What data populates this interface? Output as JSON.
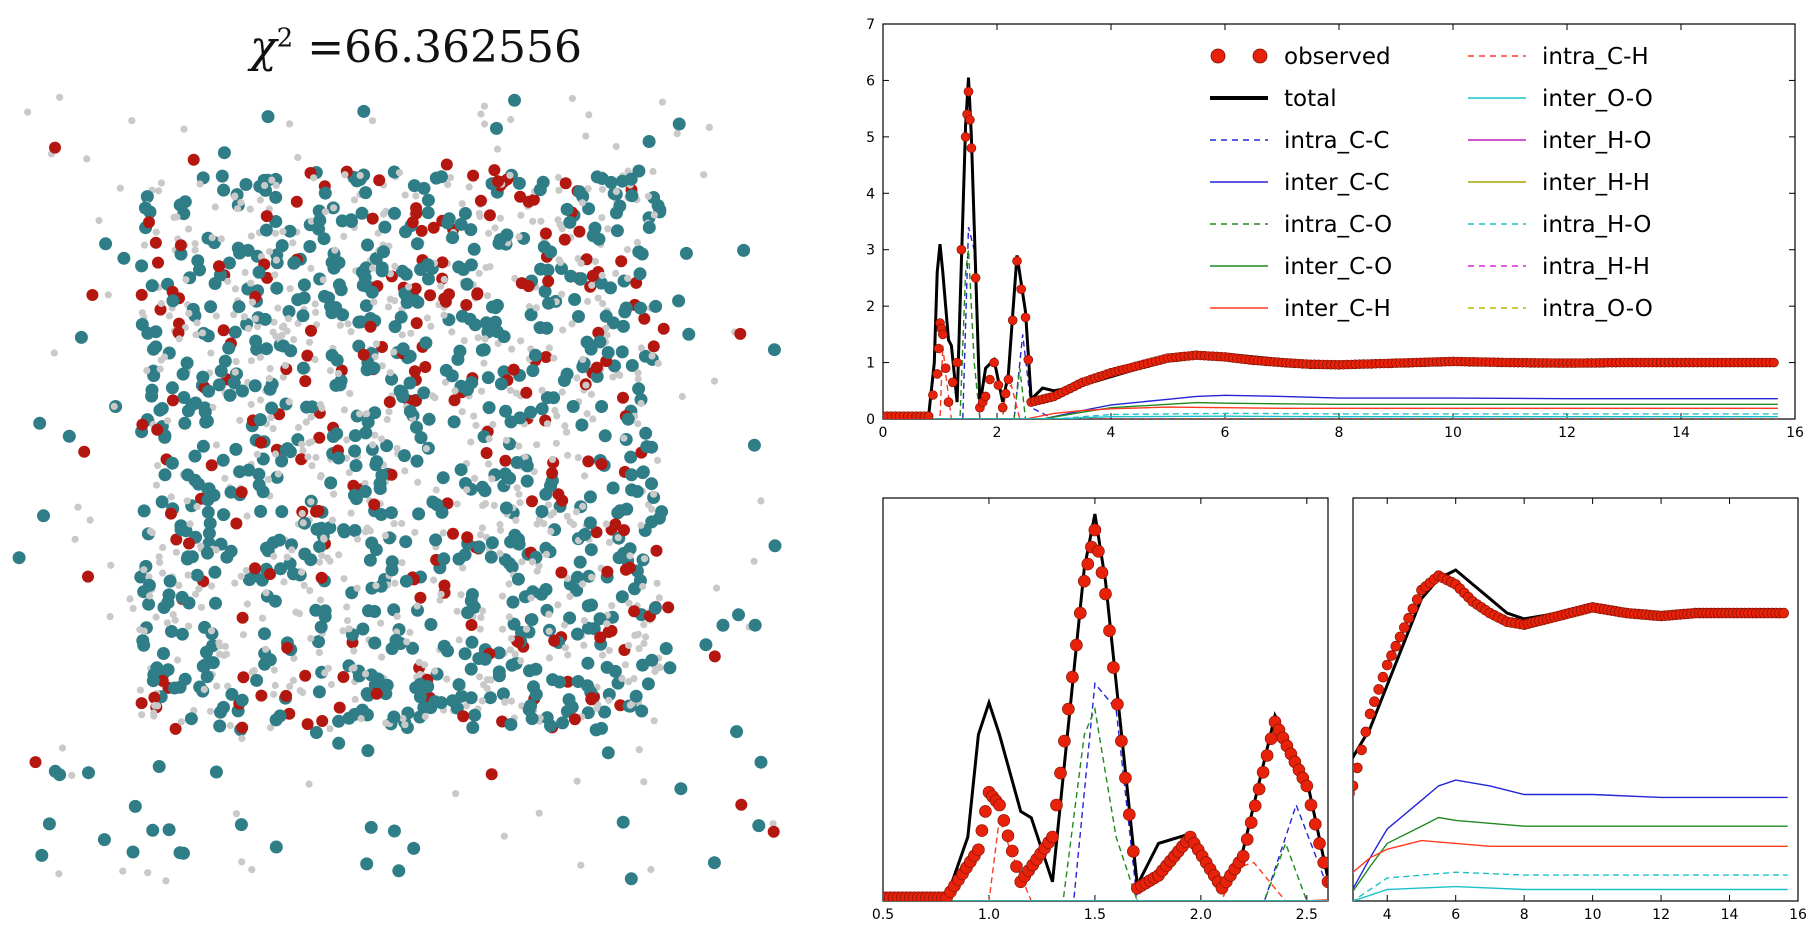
{
  "title": {
    "symbol": "χ",
    "exponent": "2",
    "value": "=66.362556"
  },
  "legend": [
    {
      "label": "observed",
      "color": "#e8220a",
      "style": "dots"
    },
    {
      "label": "total",
      "color": "#000000",
      "style": "solid-thick"
    },
    {
      "label": "intra_C-C",
      "color": "#2424d8",
      "style": "dashed"
    },
    {
      "label": "inter_C-C",
      "color": "#2424d8",
      "style": "solid"
    },
    {
      "label": "intra_C-O",
      "color": "#1f8a1f",
      "style": "dashed"
    },
    {
      "label": "inter_C-O",
      "color": "#1f8a1f",
      "style": "solid"
    },
    {
      "label": "inter_C-H",
      "color": "#ff3b22",
      "style": "solid"
    },
    {
      "label": "intra_C-H",
      "color": "#ff3b22",
      "style": "dashed"
    },
    {
      "label": "inter_O-O",
      "color": "#19c2c8",
      "style": "solid"
    },
    {
      "label": "inter_H-O",
      "color": "#c21fc2",
      "style": "solid"
    },
    {
      "label": "inter_H-H",
      "color": "#a8a400",
      "style": "solid"
    },
    {
      "label": "intra_H-O",
      "color": "#19c2c8",
      "style": "dashed"
    },
    {
      "label": "intra_H-H",
      "color": "#d825d8",
      "style": "dashed"
    },
    {
      "label": "intra_O-O",
      "color": "#b8b800",
      "style": "dashed"
    }
  ],
  "chart_data": [
    {
      "type": "line",
      "xlim": [
        0,
        16
      ],
      "ylim": [
        0,
        7
      ],
      "xticks": [
        "0",
        "2",
        "4",
        "6",
        "8",
        "10",
        "12",
        "14",
        "16"
      ],
      "yticks": [
        "0",
        "1",
        "2",
        "3",
        "4",
        "5",
        "6",
        "7"
      ],
      "series": [
        {
          "name": "observed",
          "x": [
            0,
            0.8,
            0.95,
            1.0,
            1.05,
            1.15,
            1.3,
            1.45,
            1.5,
            1.55,
            1.7,
            1.8,
            1.95,
            2.1,
            2.2,
            2.35,
            2.5,
            2.6,
            2.8,
            3,
            3.5,
            4,
            4.5,
            5,
            5.5,
            6,
            6.5,
            7,
            7.5,
            8,
            9,
            10,
            11,
            12,
            13,
            14,
            15,
            15.7
          ],
          "y": [
            0.05,
            0.05,
            0.8,
            1.7,
            1.5,
            0.3,
            1.0,
            5.0,
            5.8,
            4.8,
            0.2,
            0.4,
            1.0,
            0.2,
            0.7,
            2.8,
            1.8,
            0.3,
            0.35,
            0.4,
            0.65,
            0.82,
            0.95,
            1.08,
            1.13,
            1.1,
            1.04,
            1.0,
            0.97,
            0.96,
            0.99,
            1.02,
            1.0,
            0.99,
            1.0,
            1.0,
            1.0,
            1.0
          ]
        },
        {
          "name": "total",
          "x": [
            0,
            0.8,
            0.9,
            0.95,
            1.0,
            1.05,
            1.15,
            1.2,
            1.3,
            1.45,
            1.5,
            1.55,
            1.7,
            1.8,
            1.95,
            2.1,
            2.2,
            2.35,
            2.5,
            2.6,
            2.8,
            3,
            3.5,
            4,
            4.5,
            5,
            5.5,
            6,
            6.5,
            7,
            7.5,
            8,
            9,
            10,
            11,
            12,
            13,
            14,
            15,
            15.7
          ],
          "y": [
            0.05,
            0.05,
            1.0,
            2.6,
            3.1,
            2.6,
            1.4,
            1.3,
            0.3,
            5.2,
            6.05,
            5.0,
            0.25,
            0.9,
            1.05,
            0.3,
            0.8,
            2.9,
            1.9,
            0.35,
            0.55,
            0.5,
            0.6,
            0.75,
            0.9,
            1.05,
            1.12,
            1.15,
            1.1,
            1.05,
            1.0,
            0.98,
            1.0,
            1.02,
            1.0,
            1.0,
            1.0,
            1.0,
            1.0,
            1.0
          ]
        },
        {
          "name": "intra_C-C",
          "x": [
            0,
            1.4,
            1.5,
            1.6,
            1.7,
            2.3,
            2.45,
            2.6,
            3,
            15.7
          ],
          "y": [
            0,
            0,
            3.4,
            3.0,
            0,
            0,
            1.5,
            0.2,
            0,
            0
          ]
        },
        {
          "name": "inter_C-C",
          "x": [
            0,
            2.8,
            3.5,
            4,
            5,
            5.5,
            6,
            7,
            8,
            10,
            12,
            14,
            15.7
          ],
          "y": [
            0,
            0,
            0.15,
            0.25,
            0.35,
            0.4,
            0.42,
            0.4,
            0.37,
            0.37,
            0.36,
            0.36,
            0.36
          ]
        },
        {
          "name": "intra_C-O",
          "x": [
            0,
            1.35,
            1.45,
            1.5,
            1.6,
            1.7,
            2.3,
            2.4,
            2.5,
            15.7
          ],
          "y": [
            0,
            0,
            2.6,
            3.0,
            1.0,
            0,
            0,
            0.9,
            0,
            0
          ]
        },
        {
          "name": "inter_C-O",
          "x": [
            0,
            2.8,
            3.5,
            4,
            5,
            5.5,
            6,
            7,
            8,
            10,
            12,
            14,
            15.7
          ],
          "y": [
            0,
            0,
            0.12,
            0.2,
            0.26,
            0.29,
            0.28,
            0.27,
            0.26,
            0.26,
            0.26,
            0.26,
            0.26
          ]
        },
        {
          "name": "inter_C-H",
          "x": [
            0,
            2.5,
            3,
            3.5,
            4,
            5,
            6,
            7,
            8,
            10,
            12,
            14,
            15.7
          ],
          "y": [
            0,
            0,
            0.1,
            0.15,
            0.18,
            0.21,
            0.2,
            0.19,
            0.19,
            0.19,
            0.19,
            0.19,
            0.19
          ]
        },
        {
          "name": "intra_C-H",
          "x": [
            0,
            1.0,
            1.05,
            1.1,
            1.2,
            2.1,
            2.15,
            2.25,
            2.4,
            15.7
          ],
          "y": [
            0,
            0,
            1.3,
            0.8,
            0,
            0,
            0.5,
            0.6,
            0,
            0
          ]
        },
        {
          "name": "inter_O-O",
          "x": [
            0,
            3,
            4,
            6,
            8,
            10,
            12,
            14,
            15.7
          ],
          "y": [
            0,
            0,
            0.04,
            0.05,
            0.04,
            0.04,
            0.04,
            0.04,
            0.04
          ]
        },
        {
          "name": "intra_H-O",
          "x": [
            0,
            3,
            4,
            6,
            8,
            10,
            12,
            14,
            15.7
          ],
          "y": [
            0,
            0,
            0.08,
            0.1,
            0.09,
            0.09,
            0.09,
            0.09,
            0.09
          ]
        }
      ]
    },
    {
      "type": "line",
      "xlim": [
        0.5,
        2.6
      ],
      "xticks": [
        "0.5",
        "1.0",
        "1.5",
        "2.0",
        "2.5"
      ],
      "ylim": [
        0,
        6.3
      ]
    },
    {
      "type": "line",
      "xlim": [
        3,
        16
      ],
      "xticks": [
        "4",
        "6",
        "8",
        "10",
        "12",
        "14",
        "16"
      ],
      "ylim": [
        0,
        1.4
      ]
    }
  ]
}
